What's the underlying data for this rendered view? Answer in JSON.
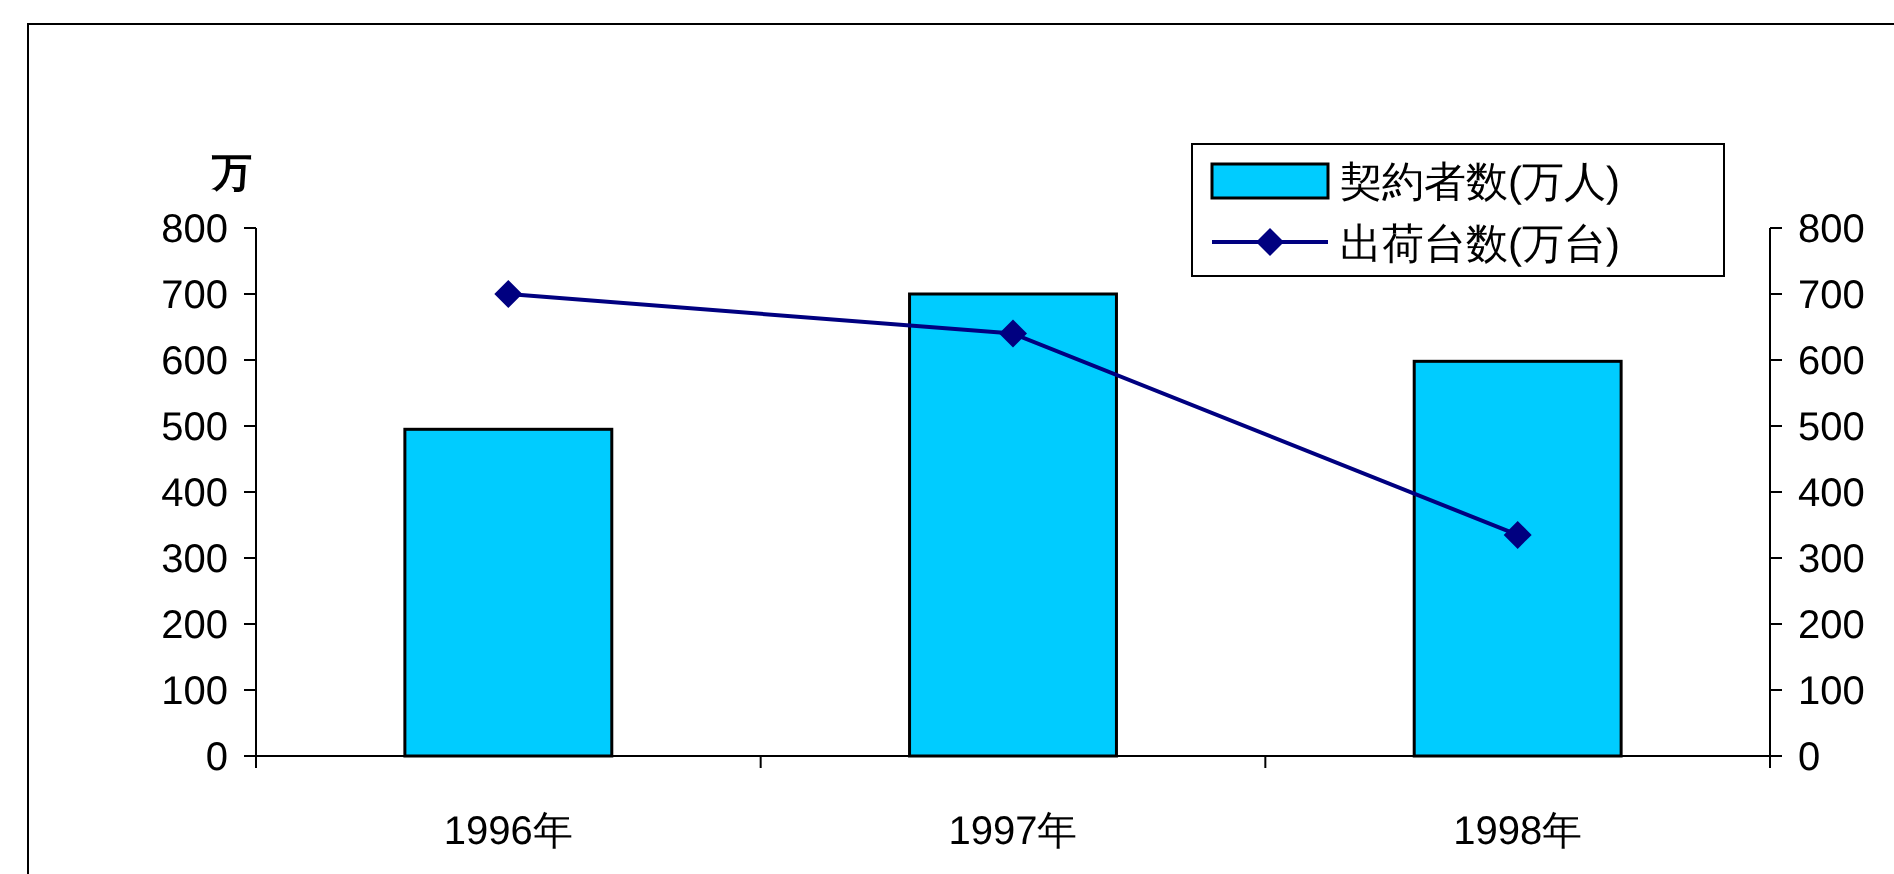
{
  "chart_data": {
    "type": "bar",
    "ylabel": "万",
    "categories": [
      "1996年",
      "1997年",
      "1998年"
    ],
    "series": [
      {
        "name": "契約者数(万人)",
        "color": "#00ccff",
        "values": [
          495,
          700,
          598
        ]
      },
      {
        "name": "出荷台数(万台)",
        "type": "line",
        "color": "#000080",
        "marker": "diamond",
        "values": [
          700,
          640,
          335
        ]
      }
    ],
    "ylim": [
      0,
      800
    ],
    "yticks": [
      0,
      100,
      200,
      300,
      400,
      500,
      600,
      700,
      800
    ],
    "y2lim": [
      0,
      800
    ],
    "y2ticks": [
      0,
      100,
      200,
      300,
      400,
      500,
      600,
      700,
      800
    ],
    "grid": false,
    "legend": "top right"
  }
}
